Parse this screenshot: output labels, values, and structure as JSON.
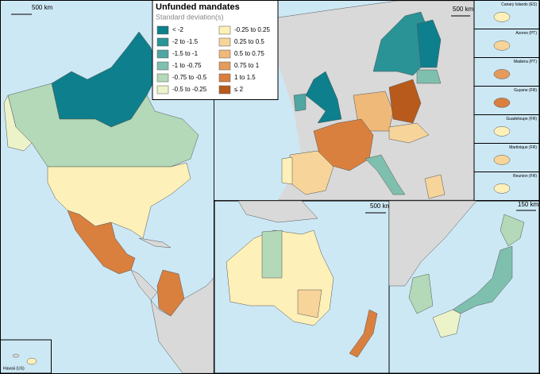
{
  "title": "Unfunded mandates",
  "subtitle": "Standard deviation(s)",
  "legend": [
    {
      "label": "< -2",
      "color": "#0e7f8c"
    },
    {
      "label": "-2 to -1.5",
      "color": "#2a9396"
    },
    {
      "label": "-1.5 to -1",
      "color": "#4fa6a2"
    },
    {
      "label": "-1 to -0.75",
      "color": "#7fbfae"
    },
    {
      "label": "-0.75 to -0.5",
      "color": "#b3d9b8"
    },
    {
      "label": "-0.5 to -0.25",
      "color": "#edf3c9"
    },
    {
      "label": "-0.25 to 0.25",
      "color": "#fdf0b8"
    },
    {
      "label": "0.25 to 0.5",
      "color": "#f6d49a"
    },
    {
      "label": "0.5 to 0.75",
      "color": "#efb97a"
    },
    {
      "label": "0.75 to 1",
      "color": "#e59b5c"
    },
    {
      "label": "1 to 1.5",
      "color": "#d9803f"
    },
    {
      "label": "≤ 2",
      "color": "#b85a1c"
    }
  ],
  "scale_labels": {
    "north_america": "500 km",
    "europe": "500 km",
    "australia": "500 km",
    "japan": "150 km"
  },
  "insets": [
    "Canary Islands (ES)",
    "Azores (PT)",
    "Madeira (PT)",
    "Guyane (FR)",
    "Guadeloupe (FR)",
    "Martinique (FR)",
    "Reunion (FR)"
  ],
  "hawaii_label": "Hawaii (US)"
}
